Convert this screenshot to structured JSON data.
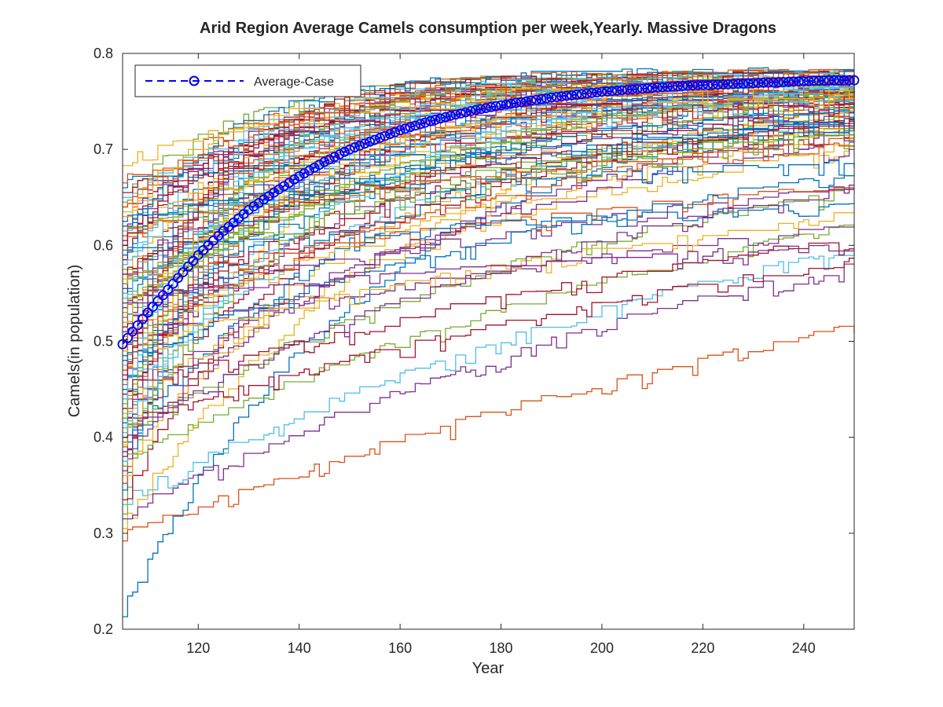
{
  "chart_data": {
    "type": "line",
    "title": "Arid Region Average Camels consumption per week,Yearly. Massive Dragons",
    "xlabel": "Year",
    "ylabel": "Camels(in population)",
    "xlim": [
      105,
      250
    ],
    "ylim": [
      0.2,
      0.8
    ],
    "xticks": [
      "120",
      "140",
      "160",
      "180",
      "200",
      "220",
      "240"
    ],
    "yticks": [
      "0.2",
      "0.3",
      "0.4",
      "0.5",
      "0.6",
      "0.7",
      "0.8"
    ],
    "grid": false,
    "box": true,
    "legend": {
      "location": "top-left",
      "entries": [
        "Average-Case"
      ]
    },
    "average_series": {
      "name": "Average-Case",
      "color": "#0000ff",
      "line_style": "dashed",
      "marker": "circle",
      "x": [
        105,
        110,
        115,
        120,
        125,
        130,
        135,
        140,
        145,
        150,
        155,
        160,
        165,
        170,
        175,
        180,
        185,
        190,
        195,
        200,
        205,
        210,
        215,
        220,
        225,
        230,
        235,
        240,
        245,
        250
      ],
      "y": [
        0.497,
        0.53,
        0.56,
        0.59,
        0.615,
        0.637,
        0.655,
        0.672,
        0.687,
        0.7,
        0.71,
        0.72,
        0.728,
        0.735,
        0.741,
        0.746,
        0.75,
        0.754,
        0.757,
        0.76,
        0.762,
        0.764,
        0.766,
        0.767,
        0.768,
        0.769,
        0.77,
        0.771,
        0.772,
        0.772
      ]
    },
    "simulation_runs": {
      "count": 100,
      "x_start": 105,
      "x_end": 250,
      "colors": [
        "#0072bd",
        "#d95319",
        "#edb120",
        "#7e2f8e",
        "#77ac30",
        "#4dbeee",
        "#a2142f"
      ],
      "start_values": [
        0.213,
        0.292,
        0.305,
        0.315,
        0.32,
        0.33,
        0.335,
        0.345,
        0.352,
        0.36,
        0.365,
        0.37,
        0.375,
        0.38,
        0.385,
        0.39,
        0.392,
        0.395,
        0.4,
        0.405,
        0.41,
        0.415,
        0.42,
        0.425,
        0.43,
        0.435,
        0.44,
        0.445,
        0.45,
        0.455,
        0.46,
        0.465,
        0.47,
        0.475,
        0.48,
        0.485,
        0.49,
        0.495,
        0.5,
        0.505,
        0.51,
        0.515,
        0.52,
        0.525,
        0.53,
        0.535,
        0.54,
        0.545,
        0.55,
        0.555,
        0.56,
        0.565,
        0.57,
        0.575,
        0.58,
        0.585,
        0.59,
        0.595,
        0.6,
        0.605,
        0.61,
        0.615,
        0.62,
        0.625,
        0.63,
        0.635,
        0.64,
        0.645,
        0.65,
        0.655,
        0.66,
        0.665,
        0.683,
        0.385,
        0.395,
        0.41,
        0.43,
        0.45,
        0.47,
        0.49,
        0.51,
        0.53,
        0.55,
        0.57,
        0.59,
        0.61,
        0.63,
        0.4,
        0.42,
        0.44,
        0.46,
        0.48,
        0.5,
        0.52,
        0.54,
        0.56,
        0.58,
        0.6,
        0.62,
        0.64
      ],
      "end_range": [
        0.735,
        0.775
      ],
      "saturation_range": [
        0.002,
        0.06
      ]
    }
  }
}
